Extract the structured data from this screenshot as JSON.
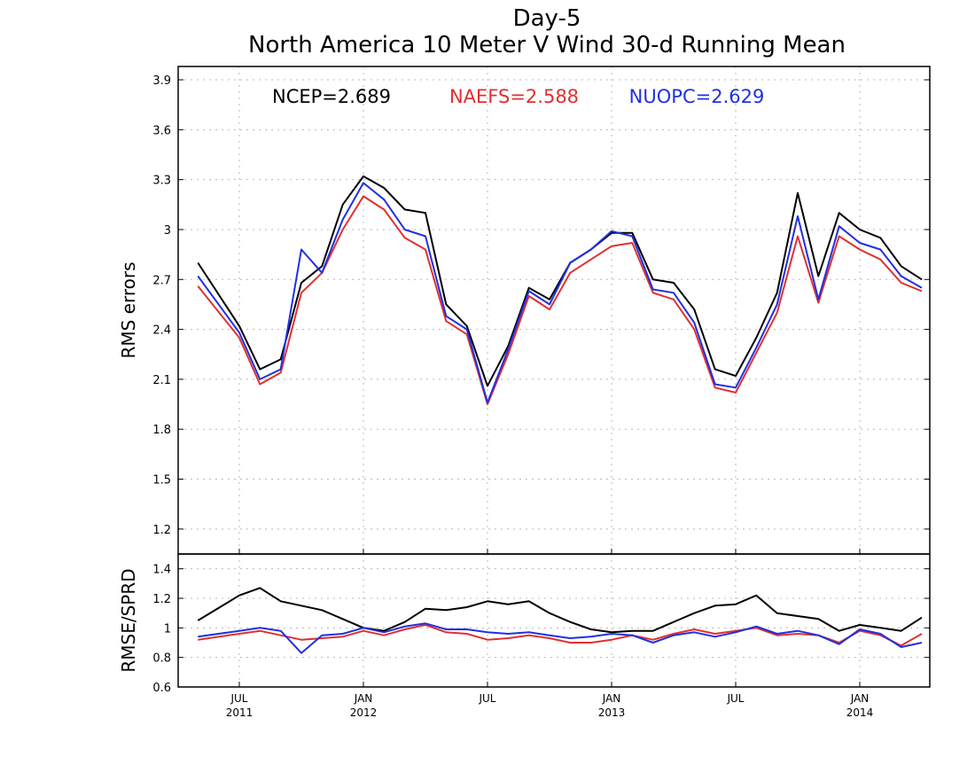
{
  "chart_data": [
    {
      "type": "line",
      "title": "Day-5",
      "subtitle": "North America 10 Meter V Wind 30-d Running Mean",
      "ylabel": "RMS errors",
      "ylim": [
        1.05,
        3.98
      ],
      "yticks": [
        "1.2",
        "1.5",
        "1.8",
        "2.1",
        "2.4",
        "2.7",
        "3",
        "3.3",
        "3.6",
        "3.9"
      ],
      "grid": true,
      "x": [
        "2011-05",
        "2011-07",
        "2011-08",
        "2011-09",
        "2011-10",
        "2011-11",
        "2011-12",
        "2012-01",
        "2012-02",
        "2012-03",
        "2012-04",
        "2012-05",
        "2012-06",
        "2012-07",
        "2012-08",
        "2012-09",
        "2012-10",
        "2012-11",
        "2012-12",
        "2013-01",
        "2013-02",
        "2013-03",
        "2013-04",
        "2013-05",
        "2013-06",
        "2013-07",
        "2013-08",
        "2013-09",
        "2013-10",
        "2013-11",
        "2013-12",
        "2014-01",
        "2014-02",
        "2014-03",
        "2014-04"
      ],
      "series": [
        {
          "name": "NCEP",
          "color": "#000000",
          "legend_text": "NCEP=2.689",
          "values": [
            2.8,
            2.42,
            2.16,
            2.22,
            2.68,
            2.78,
            3.15,
            3.32,
            3.25,
            3.12,
            3.1,
            2.55,
            2.42,
            2.06,
            2.3,
            2.65,
            2.58,
            2.8,
            2.88,
            2.98,
            2.98,
            2.7,
            2.68,
            2.52,
            2.16,
            2.12,
            2.35,
            2.62,
            3.22,
            2.72,
            3.1,
            3.0,
            2.95,
            2.78,
            2.7
          ]
        },
        {
          "name": "NAEFS",
          "color": "#e03030",
          "legend_text": "NAEFS=2.588",
          "values": [
            2.66,
            2.35,
            2.07,
            2.14,
            2.62,
            2.74,
            3.0,
            3.2,
            3.12,
            2.95,
            2.88,
            2.45,
            2.37,
            1.95,
            2.25,
            2.6,
            2.52,
            2.74,
            2.82,
            2.9,
            2.92,
            2.62,
            2.58,
            2.4,
            2.05,
            2.02,
            2.26,
            2.5,
            2.96,
            2.56,
            2.96,
            2.88,
            2.82,
            2.68,
            2.63
          ]
        },
        {
          "name": "NUOPC",
          "color": "#2030e0",
          "legend_text": "NUOPC=2.629",
          "values": [
            2.72,
            2.38,
            2.1,
            2.16,
            2.88,
            2.74,
            3.06,
            3.28,
            3.18,
            3.0,
            2.96,
            2.48,
            2.4,
            1.96,
            2.28,
            2.63,
            2.55,
            2.8,
            2.88,
            2.99,
            2.96,
            2.64,
            2.62,
            2.44,
            2.07,
            2.05,
            2.29,
            2.55,
            3.08,
            2.58,
            3.02,
            2.92,
            2.88,
            2.72,
            2.65
          ]
        }
      ]
    },
    {
      "type": "line",
      "ylabel": "RMSE/SPRD",
      "ylim": [
        0.6,
        1.5
      ],
      "yticks": [
        "0.6",
        "0.8",
        "1",
        "1.2",
        "1.4"
      ],
      "grid": true,
      "x": [
        "2011-05",
        "2011-07",
        "2011-08",
        "2011-09",
        "2011-10",
        "2011-11",
        "2011-12",
        "2012-01",
        "2012-02",
        "2012-03",
        "2012-04",
        "2012-05",
        "2012-06",
        "2012-07",
        "2012-08",
        "2012-09",
        "2012-10",
        "2012-11",
        "2012-12",
        "2013-01",
        "2013-02",
        "2013-03",
        "2013-04",
        "2013-05",
        "2013-06",
        "2013-07",
        "2013-08",
        "2013-09",
        "2013-10",
        "2013-11",
        "2013-12",
        "2014-01",
        "2014-02",
        "2014-03",
        "2014-04"
      ],
      "xticks": [
        {
          "month": "JUL",
          "year": "2011",
          "date": "2011-07"
        },
        {
          "month": "JAN",
          "year": "2012",
          "date": "2012-01"
        },
        {
          "month": "JUL",
          "year": "",
          "date": "2012-07"
        },
        {
          "month": "JAN",
          "year": "2013",
          "date": "2013-01"
        },
        {
          "month": "JUL",
          "year": "",
          "date": "2013-07"
        },
        {
          "month": "JAN",
          "year": "2014",
          "date": "2014-01"
        }
      ],
      "series": [
        {
          "name": "NCEP",
          "color": "#000000",
          "values": [
            1.05,
            1.22,
            1.27,
            1.18,
            1.15,
            1.12,
            1.06,
            1.0,
            0.98,
            1.04,
            1.13,
            1.12,
            1.14,
            1.18,
            1.16,
            1.18,
            1.1,
            1.04,
            0.99,
            0.97,
            0.98,
            0.98,
            1.04,
            1.1,
            1.15,
            1.16,
            1.22,
            1.1,
            1.08,
            1.06,
            0.98,
            1.02,
            1.0,
            0.98,
            1.07
          ]
        },
        {
          "name": "NAEFS",
          "color": "#e03030",
          "values": [
            0.92,
            0.96,
            0.98,
            0.95,
            0.92,
            0.93,
            0.94,
            0.98,
            0.95,
            0.99,
            1.02,
            0.97,
            0.96,
            0.92,
            0.93,
            0.95,
            0.93,
            0.9,
            0.9,
            0.92,
            0.95,
            0.92,
            0.96,
            0.99,
            0.96,
            0.98,
            1.0,
            0.95,
            0.96,
            0.95,
            0.9,
            0.98,
            0.95,
            0.88,
            0.96
          ]
        },
        {
          "name": "NUOPC",
          "color": "#2030e0",
          "values": [
            0.94,
            0.98,
            1.0,
            0.98,
            0.83,
            0.95,
            0.96,
            1.0,
            0.97,
            1.01,
            1.03,
            0.99,
            0.99,
            0.97,
            0.96,
            0.97,
            0.95,
            0.93,
            0.94,
            0.96,
            0.95,
            0.9,
            0.95,
            0.97,
            0.94,
            0.97,
            1.01,
            0.96,
            0.98,
            0.95,
            0.89,
            0.99,
            0.96,
            0.87,
            0.9
          ]
        }
      ]
    }
  ]
}
